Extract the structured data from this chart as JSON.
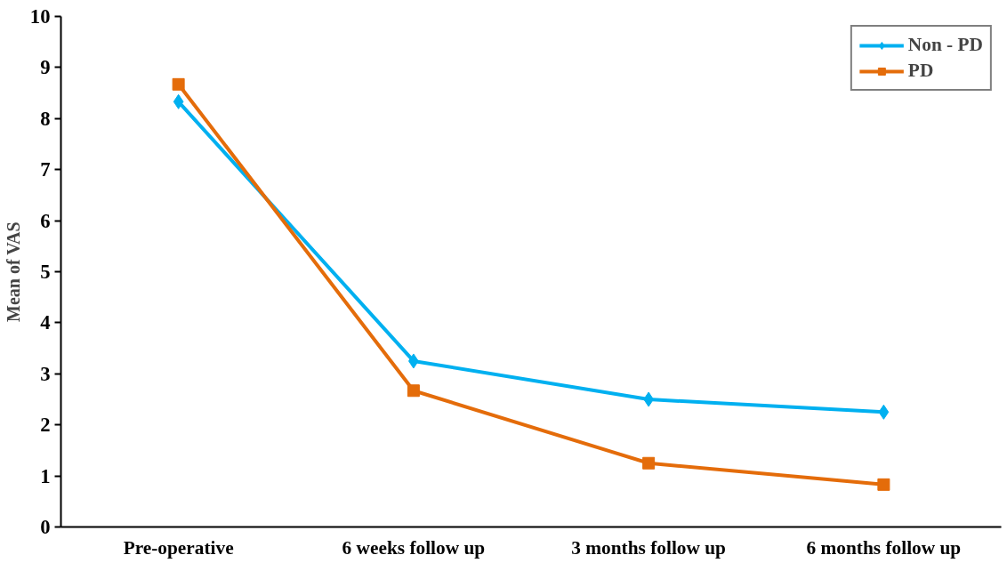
{
  "chart_data": {
    "type": "line",
    "ylabel": "Mean of VAS",
    "categories": [
      "Pre-operative",
      "6 weeks follow up",
      "3 months follow up",
      "6 months follow up"
    ],
    "series": [
      {
        "name": "Non - PD",
        "color": "#00b0f0",
        "marker": "diamond",
        "values": [
          8.33,
          3.25,
          2.5,
          2.25
        ]
      },
      {
        "name": "PD",
        "color": "#e46c0a",
        "marker": "square",
        "values": [
          8.67,
          2.67,
          1.25,
          0.83
        ]
      }
    ],
    "ylim": [
      0,
      10
    ],
    "yticks": [
      0,
      1,
      2,
      3,
      4,
      5,
      6,
      7,
      8,
      9,
      10
    ],
    "grid": false,
    "legend": "top right",
    "line_style": "solid"
  }
}
